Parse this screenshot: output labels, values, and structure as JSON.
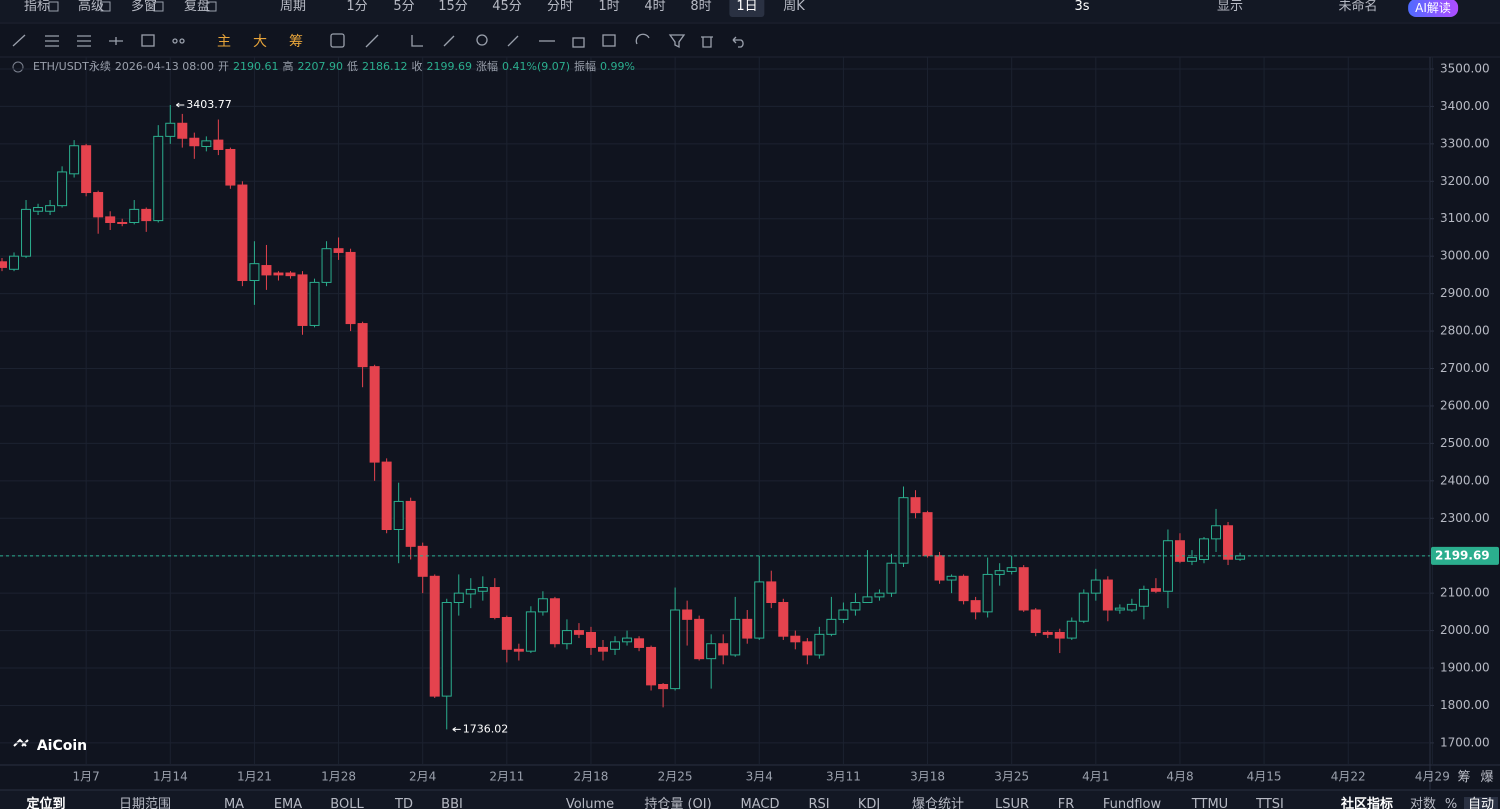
{
  "ui": {
    "left": [
      "指标",
      "高级",
      "多窗",
      "复盘"
    ],
    "period": "周期",
    "intervals": [
      "1分",
      "5分",
      "15分",
      "45分",
      "分时",
      "1时",
      "4时",
      "8时",
      "1日",
      "周K"
    ],
    "active_interval": "1日",
    "right": [
      "3s",
      "显示",
      "未命名",
      "AI解读"
    ],
    "tools": [
      "主",
      "大",
      "筹"
    ],
    "bottom": [
      "定位到",
      "日期范围",
      "MA",
      "EMA",
      "BOLL",
      "TD",
      "BBI",
      "Volume",
      "持仓量 (OI)",
      "MACD",
      "RSI",
      "KDJ",
      "爆仓统计",
      "LSUR",
      "FR",
      "Fundflow",
      "TTMU",
      "TTSI",
      "社区指标",
      "对数",
      "%",
      "自动"
    ],
    "axis_extra": [
      "筹",
      "爆"
    ],
    "logo": "AiCoin"
  },
  "ticker": {
    "symbol": "ETH/USDT永续",
    "time": "2026-04-13 08:00",
    "fields": [
      {
        "label": "开",
        "value": "2190.61"
      },
      {
        "label": "高",
        "value": "2207.90"
      },
      {
        "label": "低",
        "value": "2186.12"
      },
      {
        "label": "收",
        "value": "2199.69"
      },
      {
        "label": "涨幅",
        "value": "0.41%(9.07)"
      },
      {
        "label": "振幅",
        "value": "0.99%"
      }
    ]
  },
  "chart_data": {
    "type": "candlestick",
    "up_color": "#2bae8e",
    "down_color": "#e5434e",
    "grid": true,
    "categories": [
      null,
      null,
      null,
      null,
      null,
      null,
      null,
      "1月7",
      null,
      null,
      null,
      null,
      null,
      null,
      "1月14",
      null,
      null,
      null,
      null,
      null,
      null,
      "1月21",
      null,
      null,
      null,
      null,
      null,
      null,
      "1月28",
      null,
      null,
      null,
      null,
      null,
      null,
      "2月4",
      null,
      null,
      null,
      null,
      null,
      null,
      "2月11",
      null,
      null,
      null,
      null,
      null,
      null,
      "2月18",
      null,
      null,
      null,
      null,
      null,
      null,
      "2月25",
      null,
      null,
      null,
      null,
      null,
      null,
      "3月4",
      null,
      null,
      null,
      null,
      null,
      null,
      "3月11",
      null,
      null,
      null,
      null,
      null,
      null,
      "3月18",
      null,
      null,
      null,
      null,
      null,
      null,
      "3月25",
      null,
      null,
      null,
      null,
      null,
      null,
      "4月1",
      null,
      null,
      null,
      null,
      null,
      null,
      "4月8",
      null,
      null,
      null,
      null,
      null,
      null,
      "4月15",
      null,
      null,
      null,
      null,
      null,
      null,
      "4月22",
      null,
      null,
      null,
      null,
      null,
      null,
      "4月29"
    ],
    "open": [
      2985,
      2965,
      3000,
      3120,
      3120,
      3135,
      3220,
      3295,
      3170,
      3105,
      3090,
      3090,
      3125,
      3095,
      3320,
      3355,
      3315,
      3293,
      3310,
      3285,
      3190,
      2935,
      2975,
      2955,
      2955,
      2950,
      2815,
      2930,
      3020,
      3010,
      2820,
      2705,
      2450,
      2270,
      2345,
      2225,
      2145,
      1825,
      2075,
      2098,
      2105,
      2115,
      2035,
      1950,
      1945,
      2050,
      2085,
      1965,
      2000,
      1995,
      1955,
      1950,
      1970,
      1978,
      1955,
      1856,
      1845,
      2055,
      2030,
      1925,
      1965,
      1935,
      2030,
      1980,
      2130,
      2075,
      1985,
      1970,
      1935,
      1990,
      2030,
      2055,
      2075,
      2090,
      2100,
      2180,
      2355,
      2315,
      2200,
      2135,
      2145,
      2080,
      2050,
      2150,
      2158,
      2168,
      2055,
      1995,
      1995,
      1980,
      2025,
      2100,
      2135,
      2055,
      2055,
      2065,
      2112,
      2105,
      2240,
      2185,
      2190,
      2245,
      2280,
      2190.61,
      null,
      null,
      null,
      null,
      null,
      null,
      null,
      null,
      null,
      null,
      null,
      null,
      null,
      null,
      null,
      null
    ],
    "high": [
      2995,
      3010,
      3150,
      3140,
      3150,
      3240,
      3310,
      3300,
      3175,
      3120,
      3100,
      3150,
      3130,
      3350,
      3403.77,
      3380,
      3330,
      3320,
      3365,
      3290,
      3200,
      3040,
      3030,
      2960,
      2960,
      2960,
      2940,
      3040,
      3050,
      3020,
      2825,
      2710,
      2460,
      2395,
      2355,
      2235,
      2150,
      2085,
      2150,
      2140,
      2145,
      2140,
      2040,
      1965,
      2065,
      2105,
      2090,
      2030,
      2020,
      2010,
      1975,
      1985,
      2000,
      1985,
      1960,
      1860,
      2115,
      2080,
      2040,
      1990,
      1990,
      2090,
      2055,
      2200,
      2160,
      2085,
      2000,
      1980,
      2010,
      2090,
      2075,
      2100,
      2215,
      2110,
      2205,
      2385,
      2375,
      2320,
      2210,
      2150,
      2150,
      2090,
      2195,
      2180,
      2200,
      2175,
      2060,
      2000,
      2005,
      2035,
      2110,
      2165,
      2145,
      2070,
      2085,
      2120,
      2140,
      2270,
      2260,
      2215,
      2250,
      2325,
      2290,
      2207.9,
      null,
      null,
      null,
      null,
      null,
      null,
      null,
      null,
      null,
      null,
      null,
      null,
      null,
      null,
      null,
      null
    ],
    "low": [
      2960,
      2960,
      2995,
      3110,
      3110,
      3130,
      3210,
      3160,
      3060,
      3070,
      3080,
      3085,
      3065,
      3090,
      3300,
      3290,
      3260,
      3280,
      3270,
      3180,
      2920,
      2870,
      2910,
      2935,
      2940,
      2790,
      2810,
      2920,
      2990,
      2800,
      2650,
      2400,
      2260,
      2180,
      2190,
      2100,
      1820,
      1736.02,
      2040,
      2060,
      2080,
      2030,
      1915,
      1920,
      1940,
      2040,
      1955,
      1950,
      1980,
      1935,
      1920,
      1935,
      1960,
      1945,
      1840,
      1795,
      1840,
      1960,
      1920,
      1845,
      1910,
      1930,
      1965,
      1975,
      2060,
      1975,
      1950,
      1910,
      1925,
      1985,
      2020,
      2040,
      2080,
      2080,
      2090,
      2170,
      2300,
      2195,
      2125,
      2100,
      2070,
      2030,
      2035,
      2120,
      2150,
      2050,
      1985,
      1980,
      1940,
      1975,
      2020,
      2080,
      2025,
      2045,
      2050,
      2030,
      2100,
      2060,
      2180,
      2175,
      2180,
      2210,
      2175,
      2186.12,
      null,
      null,
      null,
      null,
      null,
      null,
      null,
      null,
      null,
      null,
      null,
      null,
      null,
      null,
      null,
      null
    ],
    "close": [
      2970,
      3000,
      3125,
      3130,
      3135,
      3225,
      3295,
      3170,
      3105,
      3090,
      3088,
      3125,
      3095,
      3320,
      3355,
      3315,
      3295,
      3308,
      3285,
      3190,
      2935,
      2980,
      2950,
      2950,
      2948,
      2815,
      2930,
      3020,
      3010,
      2820,
      2705,
      2450,
      2270,
      2345,
      2225,
      2145,
      1825,
      2075,
      2100,
      2110,
      2115,
      2035,
      1950,
      1945,
      2050,
      2085,
      1965,
      2000,
      1990,
      1955,
      1945,
      1970,
      1980,
      1955,
      1855,
      1845,
      2055,
      2030,
      1925,
      1965,
      1935,
      2030,
      1980,
      2130,
      2075,
      1985,
      1970,
      1935,
      1990,
      2030,
      2055,
      2075,
      2090,
      2100,
      2180,
      2355,
      2315,
      2200,
      2135,
      2145,
      2080,
      2050,
      2150,
      2160,
      2168,
      2055,
      1995,
      1990,
      1980,
      2025,
      2100,
      2135,
      2055,
      2060,
      2070,
      2110,
      2105,
      2240,
      2185,
      2195,
      2245,
      2280,
      2190.61,
      2199.69,
      null,
      null,
      null,
      null,
      null,
      null,
      null,
      null,
      null,
      null,
      null,
      null,
      null,
      null,
      null,
      null
    ],
    "high_marker_index": 14,
    "low_marker_index": 37,
    "last_price": 2199.69,
    "ylim": [
      1641,
      3532
    ],
    "yticks": [
      {
        "value": 1700,
        "label": "1700.00"
      },
      {
        "value": 1800,
        "label": "1800.00"
      },
      {
        "value": 1900,
        "label": "1900.00"
      },
      {
        "value": 2000,
        "label": "2000.00"
      },
      {
        "value": 2100,
        "label": "2100.00"
      },
      {
        "value": 2200,
        "label": "2200.00"
      },
      {
        "value": 2300,
        "label": "2300.00"
      },
      {
        "value": 2400,
        "label": "2400.00"
      },
      {
        "value": 2500,
        "label": "2500.00"
      },
      {
        "value": 2600,
        "label": "2600.00"
      },
      {
        "value": 2700,
        "label": "2700.00"
      },
      {
        "value": 2800,
        "label": "2800.00"
      },
      {
        "value": 2900,
        "label": "2900.00"
      },
      {
        "value": 3000,
        "label": "3000.00"
      },
      {
        "value": 3100,
        "label": "3100.00"
      },
      {
        "value": 3200,
        "label": "3200.00"
      },
      {
        "value": 3300,
        "label": "3300.00"
      },
      {
        "value": 3400,
        "label": "3400.00"
      },
      {
        "value": 3500,
        "label": "3500.00"
      }
    ]
  }
}
